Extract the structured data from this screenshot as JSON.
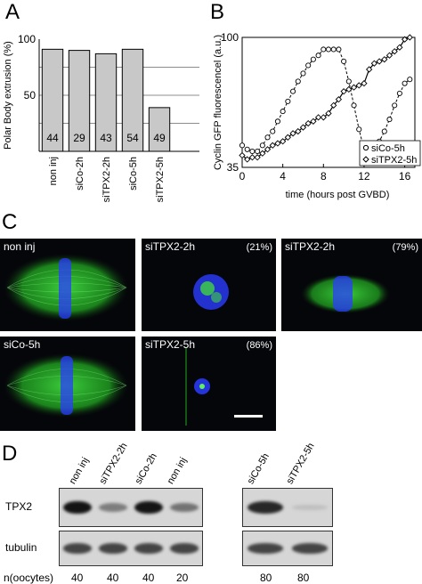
{
  "panels": {
    "a": "A",
    "b": "B",
    "c": "C",
    "d": "D"
  },
  "chart_data": [
    {
      "type": "bar",
      "ylabel": "Polar Body extrusion (%)",
      "ylim": [
        0,
        100
      ],
      "yticks": [
        "100",
        "50"
      ],
      "categories": [
        "non inj",
        "siCo-2h",
        "siTPX2-2h",
        "siCo-5h",
        "siTPX2-5h"
      ],
      "values": [
        91,
        90,
        87,
        91,
        39
      ],
      "data_labels": [
        "44",
        "29",
        "43",
        "54",
        "49"
      ],
      "grid_lines": [
        25,
        50,
        75
      ],
      "bar_color": "#c8c8c8"
    },
    {
      "type": "line",
      "ylabel": "Cyclin GFP fluorescencel (a.u.)",
      "xlabel": "time (hours post GVBD)",
      "xlim": [
        0,
        17
      ],
      "ylim": [
        35,
        100
      ],
      "xticks": [
        "0",
        "4",
        "8",
        "12",
        "16"
      ],
      "yticks": [
        "100",
        "35"
      ],
      "legend_position": "bottom-right",
      "series": [
        {
          "name": "siCo-5h",
          "marker": "circle",
          "x": [
            0,
            0.5,
            1,
            1.5,
            2,
            2.5,
            3,
            3.5,
            4,
            4.5,
            5,
            5.5,
            6,
            6.5,
            7,
            7.5,
            8,
            8.5,
            9,
            9.5,
            10,
            10.5,
            11,
            11.5,
            12,
            12.5,
            13,
            13.5,
            14,
            14.5,
            15,
            15.5,
            16,
            16.5
          ],
          "y": [
            46,
            44,
            43,
            43,
            46,
            50,
            53,
            58,
            63,
            68,
            73,
            78,
            82,
            86,
            89,
            91,
            94,
            94,
            94,
            94,
            88,
            78,
            66,
            54,
            44,
            40,
            43,
            48,
            53,
            59,
            66,
            72,
            77,
            79
          ]
        },
        {
          "name": "siTPX2-5h",
          "marker": "diamond",
          "x": [
            0,
            0.5,
            1,
            1.5,
            2,
            2.5,
            3,
            3.5,
            4,
            4.5,
            5,
            5.5,
            6,
            6.5,
            7,
            7.5,
            8,
            8.5,
            9,
            9.5,
            10,
            10.5,
            11,
            11.5,
            12,
            12.5,
            13,
            13.5,
            14,
            14.5,
            15,
            15.5,
            16,
            16.5
          ],
          "y": [
            41,
            39,
            40,
            40,
            42,
            44,
            46,
            47,
            48,
            50,
            52,
            53,
            55,
            57,
            58,
            60,
            60,
            62,
            66,
            69,
            73,
            74,
            75,
            76,
            77,
            84,
            87,
            88,
            89,
            91,
            93,
            95,
            99,
            100
          ]
        }
      ]
    }
  ],
  "micrographs": [
    {
      "label": "non inj",
      "percent": "",
      "kind": "spindle"
    },
    {
      "label": "siTPX2-2h",
      "percent": "(21%)",
      "kind": "ball"
    },
    {
      "label": "siTPX2-2h",
      "percent": "(79%)",
      "kind": "spindle-small"
    },
    {
      "label": "siCo-5h",
      "percent": "",
      "kind": "spindle"
    },
    {
      "label": "siTPX2-5h",
      "percent": "(86%)",
      "kind": "dot"
    }
  ],
  "blot": {
    "lanes_left": [
      "non inj",
      "siTPX2-2h",
      "siCo-2h",
      "non inj"
    ],
    "lanes_right": [
      "siCo-5h",
      "siTPX2-5h"
    ],
    "rows": [
      "TPX2",
      "tubulin"
    ],
    "n_label": "n(oocytes)",
    "n_left": [
      "40",
      "40",
      "40",
      "20"
    ],
    "n_right": [
      "80",
      "80"
    ],
    "tpx2_left_intensity": [
      1.0,
      0.45,
      1.0,
      0.5
    ],
    "tpx2_right_intensity": [
      0.9,
      0.1
    ],
    "tubulin_left_intensity": [
      0.75,
      0.75,
      0.75,
      0.75
    ],
    "tubulin_right_intensity": [
      0.75,
      0.75
    ]
  }
}
